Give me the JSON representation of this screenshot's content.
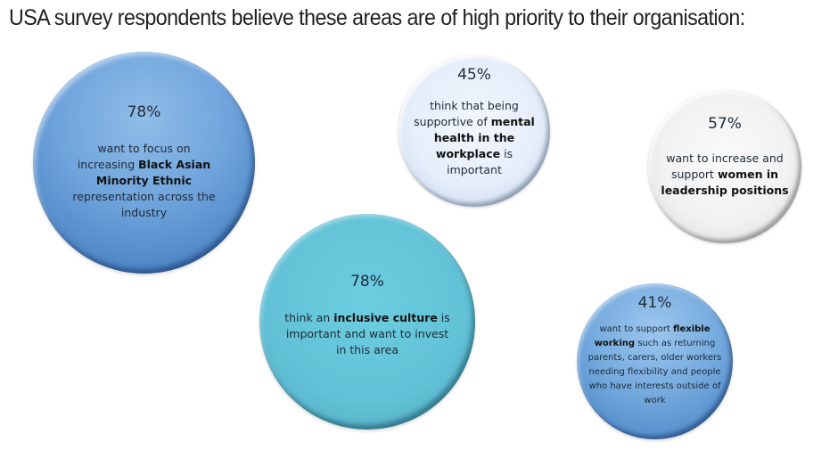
{
  "title": "USA survey respondents believe these areas are of high priority to their organisation:",
  "bubbles": [
    {
      "id": "bame",
      "percent": "78%",
      "color": "#6fa4dc",
      "text_parts": [
        "want to focus on increasing ",
        "Black Asian Minority Ethnic",
        " representation across the industry"
      ]
    },
    {
      "id": "mental-health",
      "percent": "45%",
      "color": "#e6eefa",
      "text_parts": [
        "think that being supportive of ",
        "mental health in the workplace",
        " is important"
      ]
    },
    {
      "id": "women-leadership",
      "percent": "57%",
      "color": "#f2f2f2",
      "text_parts": [
        "want to increase and support ",
        "women in leadership positions",
        ""
      ]
    },
    {
      "id": "inclusive-culture",
      "percent": "78%",
      "color": "#62c1d6",
      "text_parts": [
        "think an ",
        "inclusive culture",
        " is important and want to invest in this area"
      ]
    },
    {
      "id": "flexible-working",
      "percent": "41%",
      "color": "#77acdf",
      "text_parts": [
        "want to support ",
        "flexible working",
        " such as returning parents, carers, older workers needing flexibility and people who have interests outside of work"
      ]
    }
  ]
}
